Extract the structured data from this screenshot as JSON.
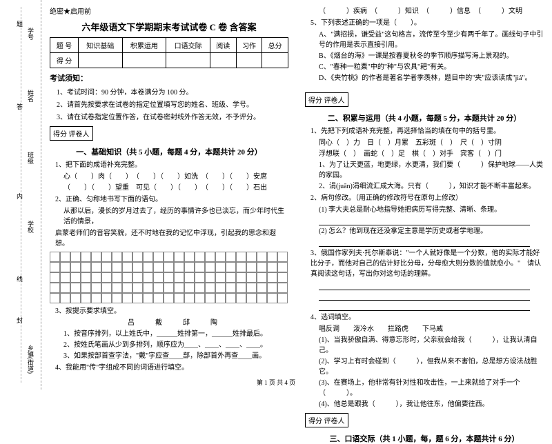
{
  "binding": {
    "labels": [
      "学号",
      "姓名",
      "班级",
      "学校",
      "乡镇(街道)"
    ],
    "vert": [
      "题",
      "答",
      "内",
      "线",
      "封"
    ]
  },
  "secret": "绝密★启用前",
  "title": "六年级语文下学期期末考试试卷 C 卷 含答案",
  "score_header": [
    "题 号",
    "知识基础",
    "积累运用",
    "口语交际",
    "阅读",
    "习作",
    "总分"
  ],
  "score_row": "得 分",
  "notice_title": "考试须知：",
  "notices": [
    "1、考试时间：90 分钟，本卷满分为 100 分。",
    "2、请首先按要求在试卷的指定位置填写您的姓名、班级、学号。",
    "3、请在试卷指定位置作答，在试卷密封线外作答无效，不予评分。"
  ],
  "scorer_box": "得分  评卷人",
  "sec1_title": "一、基础知识（共 5 小题，每题 4 分，本题共计 20 分）",
  "q1_1": "1、把下面的成语补充完整。",
  "q1_1_line1": "心（　　）肉（　　）　（　　）（　　）如洗　（　　）（　　）安席",
  "q1_1_line2": "（　　）（　　）望重　可见（　　）（　　）　（　　）（　　）石出",
  "q1_2": "2、正确、匀称地书写下面的语句。",
  "q1_2_text1": "从那以后，漫长的岁月过去了，经历的事情许多也已淡忘，而少年时代生活的情景，",
  "q1_2_text2": "启蒙老师们的音容笑貌，还不时地在我的记忆中浮现，引起我的思念和遐想。",
  "q1_3": "3、按提示要求填空。",
  "q1_3_names": "吕　戴　邱　陶",
  "q1_3_1": "1、按音序排列，以上姓氏中，______姓排第一，______姓排最后。",
  "q1_3_2": "2、按姓氏笔画从少到多排列，顺序应为____、____、____、____。",
  "q1_3_3": "3、如果按部首查字法，\"戴\"字应查____部，除部首外再查____画。",
  "q1_4": "4、我能用\"传\"字组成不同的词语进行填空。",
  "col2_line1": "（　　　）疾病　（　　　）知识　（　　　）信息　（　　　）文明",
  "q1_5": "5、下列表述正确的一项是（　　）。",
  "q1_5_a": "A、\"满招损，谦受益\"这句格言，流传至今至少有两千年了。画线句子中引号的作用是表示直接引用。",
  "q1_5_b": "B、《烟台的海》一课是按春夏秋冬的季节顺序描写海上景观的。",
  "q1_5_c": "C、\"春种一粒粟\"中的\"种\"与农具\"耙\"有关。",
  "q1_5_d": "D、《夹竹桃》的作者是著名学者季羡林，题目中的\"夹\"应该读成\"jiá\"。",
  "sec2_title": "二、积累与运用（共 4 小题，每题 5 分，本题共计 20 分）",
  "q2_1": "1、先把下列成语补充完整，再选择恰当的填在句中的括号里。",
  "q2_1_line1": "同心（　）力　日（　）月累　五彩斑（　）　尺（　）寸阴",
  "q2_1_line2": "浮想联（　）　画蛇（　）足　棋（　）对手　宾客（　）门",
  "q2_1_s1": "1、为了让天更蓝，地更绿，水更清，我们要（　　　）保护地球——人类的家园。",
  "q2_1_s2": "2、涓(juān)涓细流汇成大海。只有（　　　），知识才能不断丰富起来。",
  "q2_2": "2、病句修改。（用正确的修改符号在原句上修改）",
  "q2_2_1": "(1) 李大夫总是耐心地指导她把病历写得完整、清晰、条理。",
  "q2_2_2": "(2) 怎么？他到现在还没拿定主意是学历史或者学地理。",
  "q2_3": "3、俄国作家列夫·托尔斯泰说：\"一个人就好像是一个分数，他的实际才能好比分子，而他对自己的估计好比分母，分母愈大则分数的值就愈小。\"　请认真阅读这句话，写出你对这句话的理解。",
  "q2_4": "4、选词填空。",
  "q2_4_opts": "唱反调　　泼冷水　　拦路虎　　下马威",
  "q2_4_1": "(1)、当我骄傲自满、得意忘形时，父亲就会给我（　　　），让我认清自己。",
  "q2_4_2": "(2)、学习上有时会碰到（　　　），但我从来不害怕，总是想方设法战胜它。",
  "q2_4_3": "(3)、在赛场上，他非常有针对性和攻击性，一上来就给了对手一个（　　　）。",
  "q2_4_4": "(4)、他总是跟我（　　　），我让他往东，他偏要往西。",
  "sec3_title": "三、口语交际（共 1 小题，每，题 6 分，本题共计 6 分）",
  "footer": "第 1 页 共 4 页",
  "grid": {
    "rows": 5,
    "cols": 23
  }
}
